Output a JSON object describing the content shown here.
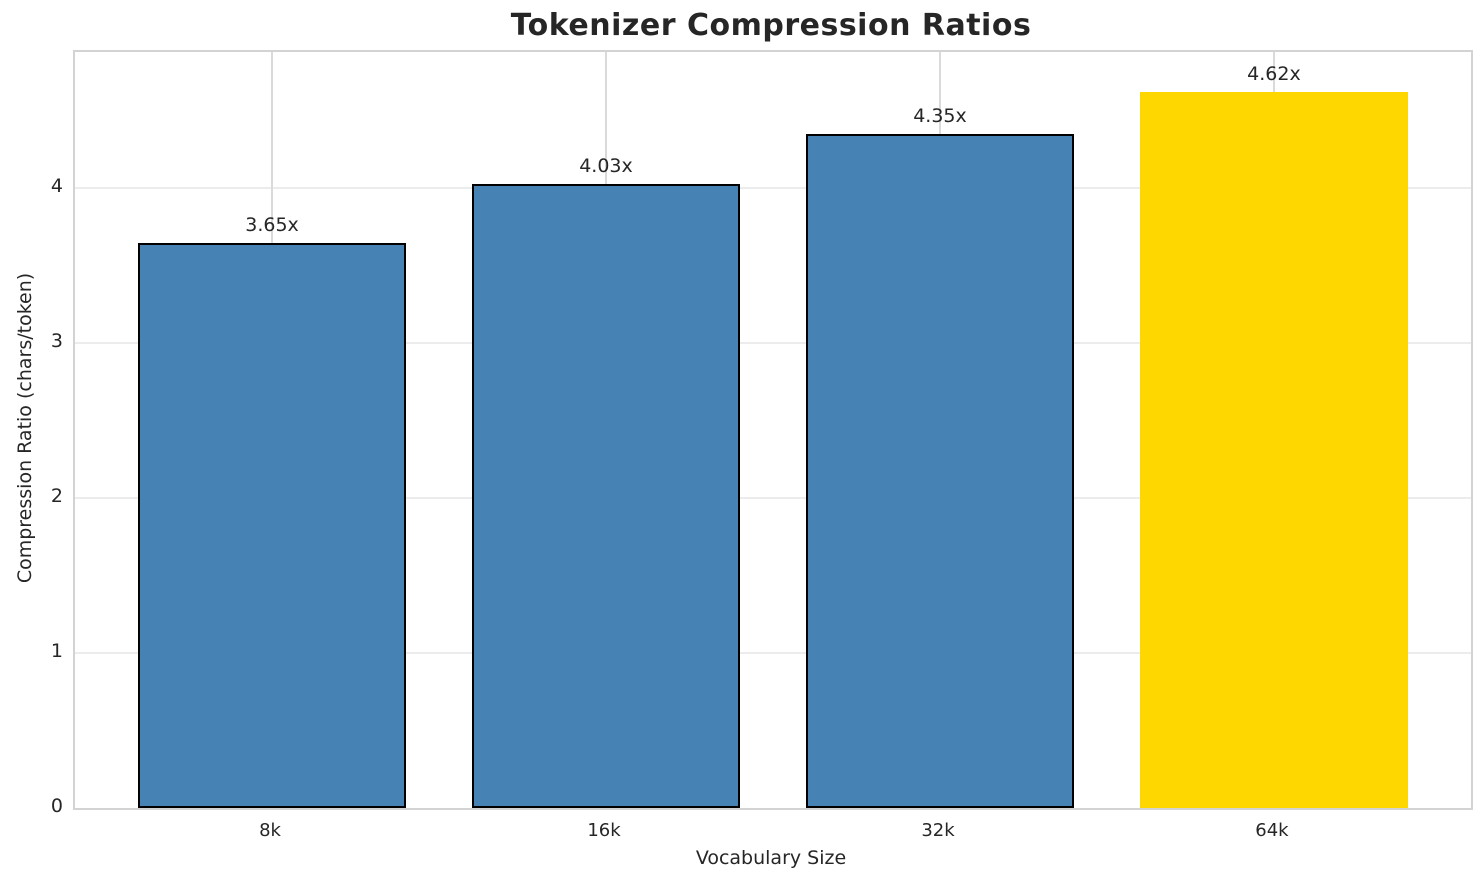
{
  "chart_data": {
    "type": "bar",
    "title": "Tokenizer Compression Ratios",
    "xlabel": "Vocabulary Size",
    "ylabel": "Compression Ratio (chars/token)",
    "categories": [
      "8k",
      "16k",
      "32k",
      "64k"
    ],
    "values": [
      3.65,
      4.03,
      4.35,
      4.62
    ],
    "bar_labels": [
      "3.65x",
      "4.03x",
      "4.35x",
      "4.62x"
    ],
    "bar_colors": [
      "#4682b4",
      "#4682b4",
      "#4682b4",
      "#ffd700"
    ],
    "bar_edge_colors": [
      "#000000",
      "#000000",
      "#000000",
      "#ffd700"
    ],
    "highlight_index": 3,
    "yticks": [
      "0",
      "1",
      "2",
      "3",
      "4"
    ],
    "ylim": [
      0,
      4.88
    ],
    "bar_width_fraction": 0.8,
    "grid": true,
    "legend": null,
    "colors": {
      "bar_default": "#4682b4",
      "bar_highlight": "#ffd700",
      "bar_edge": "#000000",
      "grid_horizontal": "#ececec",
      "grid_vertical": "#dadada",
      "spine": "#d3d3d3",
      "text": "#262626",
      "background": "#ffffff"
    }
  }
}
